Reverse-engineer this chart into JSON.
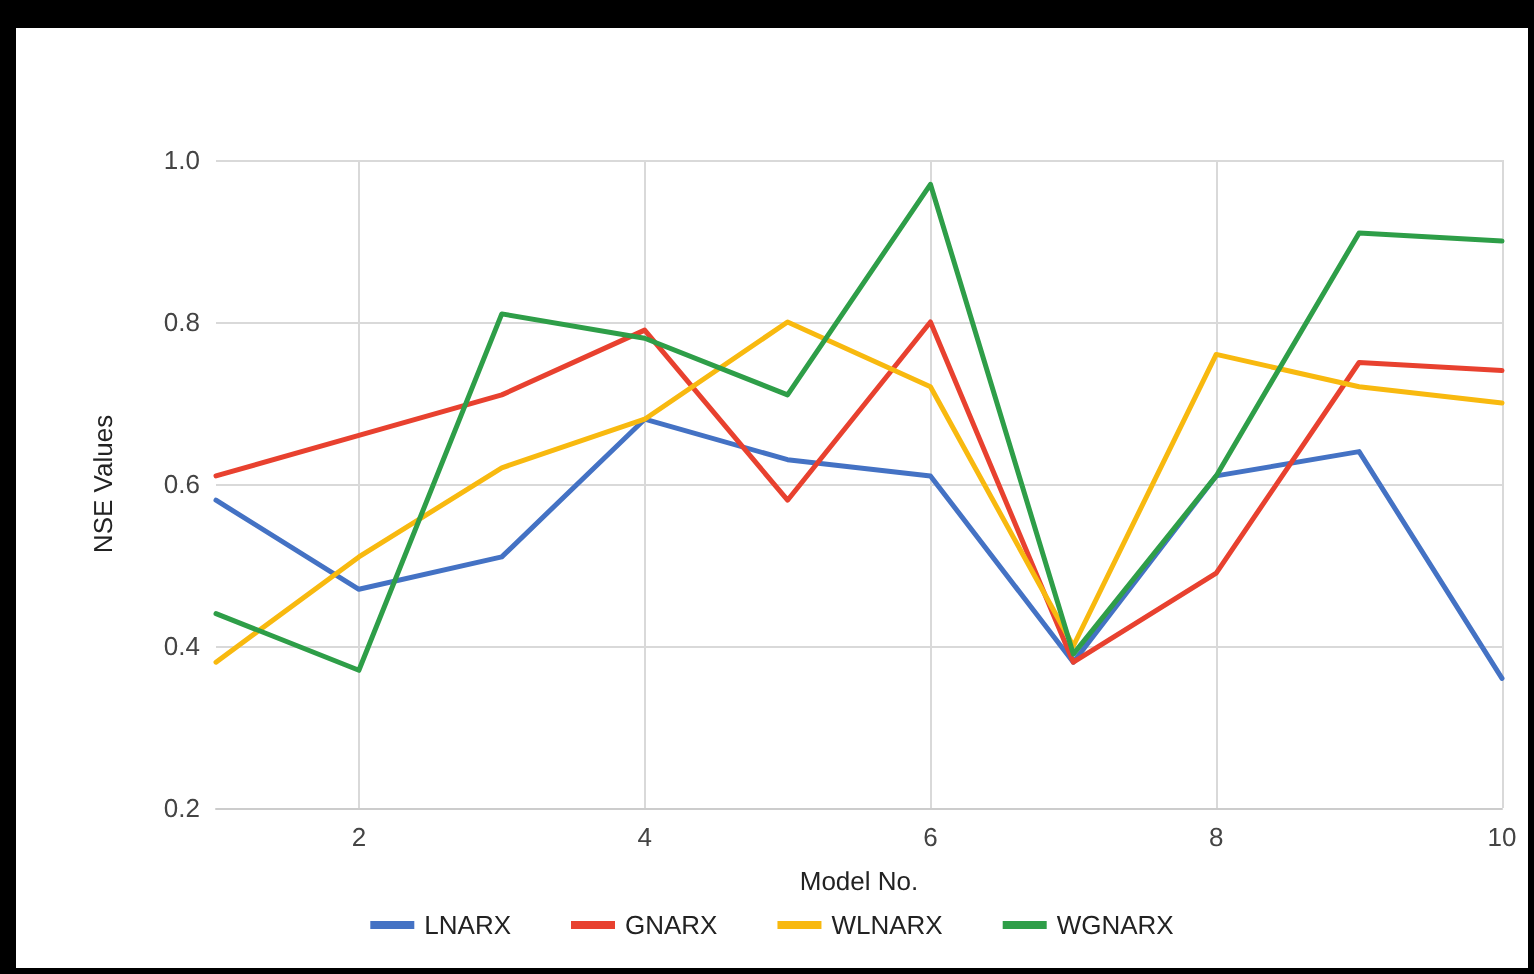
{
  "chart_data": {
    "type": "line",
    "xlabel": "Model No.",
    "ylabel": "NSE Values",
    "x": [
      1,
      2,
      3,
      4,
      5,
      6,
      7,
      8,
      9,
      10
    ],
    "xlim": [
      1,
      10
    ],
    "xticks": [
      2,
      4,
      6,
      8,
      10
    ],
    "ylim": [
      0.2,
      1.0
    ],
    "yticks": [
      0.2,
      0.4,
      0.6,
      0.8,
      {
        "value": 1,
        "label": "1.0"
      }
    ],
    "grid": true,
    "legend": "bottom",
    "marker": "none",
    "series": [
      {
        "name": "LNARX",
        "color": "#4472c4",
        "values": [
          0.58,
          0.47,
          0.51,
          0.68,
          0.63,
          0.61,
          0.38,
          0.61,
          0.64,
          0.36
        ]
      },
      {
        "name": "GNARX",
        "color": "#e8412f",
        "values": [
          0.61,
          0.66,
          0.71,
          0.79,
          0.58,
          0.8,
          0.38,
          0.49,
          0.75,
          0.74
        ]
      },
      {
        "name": "WLNARX",
        "color": "#f8b90f",
        "values": [
          0.38,
          0.51,
          0.62,
          0.68,
          0.8,
          0.72,
          0.4,
          0.76,
          0.72,
          0.7
        ]
      },
      {
        "name": "WGNARX",
        "color": "#2e9e48",
        "values": [
          0.44,
          0.37,
          0.81,
          0.78,
          0.71,
          0.97,
          0.39,
          0.61,
          0.91,
          0.9
        ]
      }
    ]
  }
}
